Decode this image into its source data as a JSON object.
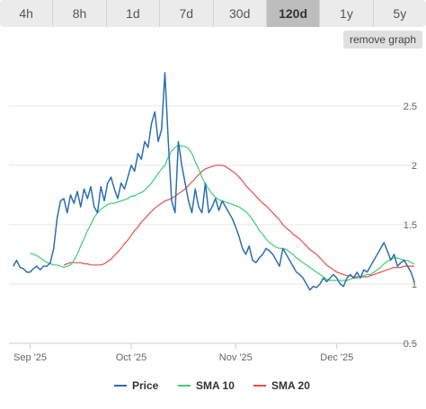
{
  "tabs": [
    {
      "label": "4h",
      "active": false
    },
    {
      "label": "8h",
      "active": false
    },
    {
      "label": "1d",
      "active": false
    },
    {
      "label": "7d",
      "active": false
    },
    {
      "label": "30d",
      "active": false
    },
    {
      "label": "120d",
      "active": true
    },
    {
      "label": "1y",
      "active": false
    },
    {
      "label": "5y",
      "active": false
    }
  ],
  "remove_button": "remove graph",
  "colors": {
    "price": "#2b6fb0",
    "sma10": "#3ccf73",
    "sma20": "#e2504a",
    "grid": "#e6e6e6"
  },
  "chart_data": {
    "type": "line",
    "title": "",
    "xlabel": "",
    "ylabel": "",
    "grid": true,
    "legend_position": "bottom-center",
    "ylim": [
      0.5,
      2.9
    ],
    "yticks": [
      0.5,
      1,
      1.5,
      2,
      2.5
    ],
    "xlim": [
      0,
      120
    ],
    "xticks": [
      {
        "x": 6,
        "label": "Sep '25"
      },
      {
        "x": 36,
        "label": "Oct '25"
      },
      {
        "x": 67,
        "label": "Nov '25"
      },
      {
        "x": 97,
        "label": "Dec '25"
      }
    ],
    "series": [
      {
        "name": "Price",
        "key": "price",
        "values": [
          1.15,
          1.2,
          1.14,
          1.13,
          1.1,
          1.1,
          1.13,
          1.15,
          1.12,
          1.15,
          1.15,
          1.18,
          1.3,
          1.55,
          1.7,
          1.72,
          1.6,
          1.75,
          1.68,
          1.78,
          1.65,
          1.8,
          1.72,
          1.82,
          1.65,
          1.6,
          1.82,
          1.7,
          1.85,
          1.9,
          1.8,
          1.72,
          1.85,
          1.8,
          1.9,
          2.0,
          1.95,
          2.1,
          2.05,
          2.2,
          2.15,
          2.35,
          2.45,
          2.2,
          2.3,
          2.78,
          2.2,
          1.7,
          1.6,
          2.2,
          2.0,
          1.85,
          1.7,
          1.6,
          1.8,
          1.65,
          1.6,
          1.85,
          1.6,
          1.65,
          1.72,
          1.62,
          1.7,
          1.65,
          1.6,
          1.55,
          1.48,
          1.4,
          1.3,
          1.25,
          1.32,
          1.2,
          1.18,
          1.22,
          1.25,
          1.3,
          1.28,
          1.25,
          1.2,
          1.15,
          1.3,
          1.25,
          1.2,
          1.15,
          1.1,
          1.08,
          1.05,
          1.0,
          0.95,
          0.98,
          0.97,
          1.0,
          1.05,
          1.02,
          1.05,
          1.08,
          1.05,
          1.0,
          0.98,
          1.05,
          1.08,
          1.05,
          1.1,
          1.05,
          1.12,
          1.1,
          1.15,
          1.2,
          1.25,
          1.3,
          1.35,
          1.28,
          1.2,
          1.25,
          1.15,
          1.18,
          1.2,
          1.15,
          1.1,
          1.02
        ]
      },
      {
        "name": "SMA 10",
        "key": "sma10",
        "values": [
          1.26,
          1.25,
          1.24,
          1.22,
          1.2,
          1.18,
          1.17,
          1.16,
          1.16,
          1.15,
          1.14,
          1.15,
          1.16,
          1.2,
          1.25,
          1.32,
          1.38,
          1.45,
          1.5,
          1.56,
          1.6,
          1.63,
          1.65,
          1.67,
          1.68,
          1.68,
          1.69,
          1.7,
          1.71,
          1.72,
          1.74,
          1.74,
          1.76,
          1.77,
          1.79,
          1.82,
          1.85,
          1.89,
          1.93,
          1.97,
          2.0,
          2.07,
          2.12,
          2.15,
          2.17,
          2.16,
          2.16,
          2.14,
          2.1,
          2.03,
          1.97,
          1.9,
          1.84,
          1.8,
          1.76,
          1.73,
          1.71,
          1.7,
          1.69,
          1.68,
          1.67,
          1.66,
          1.65,
          1.63,
          1.61,
          1.58,
          1.54,
          1.5,
          1.45,
          1.42,
          1.38,
          1.35,
          1.33,
          1.31,
          1.3,
          1.3,
          1.29,
          1.27,
          1.25,
          1.22,
          1.2,
          1.18,
          1.16,
          1.14,
          1.12,
          1.1,
          1.08,
          1.06,
          1.04,
          1.03,
          1.03,
          1.03,
          1.03,
          1.03,
          1.03,
          1.04,
          1.05,
          1.05,
          1.06,
          1.07,
          1.08,
          1.08,
          1.1,
          1.12,
          1.14,
          1.17,
          1.19,
          1.21,
          1.22,
          1.22,
          1.21,
          1.2,
          1.2,
          1.18,
          1.17
        ]
      },
      {
        "name": "SMA 20",
        "key": "sma20",
        "values": [
          1.16,
          1.17,
          1.18,
          1.18,
          1.18,
          1.18,
          1.17,
          1.17,
          1.16,
          1.16,
          1.16,
          1.16,
          1.17,
          1.19,
          1.21,
          1.24,
          1.27,
          1.3,
          1.34,
          1.37,
          1.41,
          1.45,
          1.48,
          1.52,
          1.55,
          1.58,
          1.61,
          1.64,
          1.66,
          1.68,
          1.7,
          1.71,
          1.72,
          1.74,
          1.76,
          1.78,
          1.8,
          1.83,
          1.86,
          1.89,
          1.92,
          1.95,
          1.97,
          1.98,
          1.99,
          2.0,
          2.0,
          2.0,
          1.99,
          1.97,
          1.95,
          1.93,
          1.9,
          1.87,
          1.83,
          1.8,
          1.77,
          1.74,
          1.71,
          1.68,
          1.66,
          1.63,
          1.6,
          1.57,
          1.54,
          1.5,
          1.47,
          1.45,
          1.42,
          1.4,
          1.38,
          1.35,
          1.32,
          1.29,
          1.27,
          1.25,
          1.22,
          1.19,
          1.16,
          1.14,
          1.12,
          1.1,
          1.09,
          1.08,
          1.07,
          1.07,
          1.06,
          1.06,
          1.06,
          1.06,
          1.06,
          1.07,
          1.08,
          1.09,
          1.1,
          1.11,
          1.12,
          1.13,
          1.14,
          1.14,
          1.14,
          1.15,
          1.15,
          1.15,
          1.15
        ]
      }
    ]
  }
}
